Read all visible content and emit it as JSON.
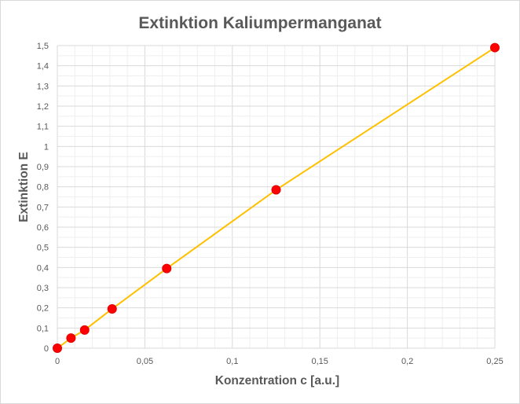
{
  "chart_data": {
    "type": "scatter",
    "title": "Extinktion Kaliumpermanganat",
    "xlabel": "Konzentration c [a.u.]",
    "ylabel": "Extinktion  E",
    "xlim": [
      0,
      0.25
    ],
    "ylim": [
      0,
      1.5
    ],
    "x_ticks": [
      "0",
      "0,05",
      "0,1",
      "0,15",
      "0,2",
      "0,25"
    ],
    "y_ticks": [
      "0",
      "0,1",
      "0,2",
      "0,3",
      "0,4",
      "0,5",
      "0,6",
      "0,7",
      "0,8",
      "0,9",
      "1",
      "1,1",
      "1,2",
      "1,3",
      "1,4",
      "1,5"
    ],
    "grid": true,
    "legend": "none",
    "series": [
      {
        "marker_color": "#ff0000",
        "line_color": "#ffc000",
        "points": [
          {
            "x": 0,
            "y": 0
          },
          {
            "x": 0.0078,
            "y": 0.05
          },
          {
            "x": 0.0156,
            "y": 0.09
          },
          {
            "x": 0.0313,
            "y": 0.195
          },
          {
            "x": 0.0625,
            "y": 0.395
          },
          {
            "x": 0.125,
            "y": 0.785
          },
          {
            "x": 0.25,
            "y": 1.49
          }
        ]
      }
    ]
  }
}
